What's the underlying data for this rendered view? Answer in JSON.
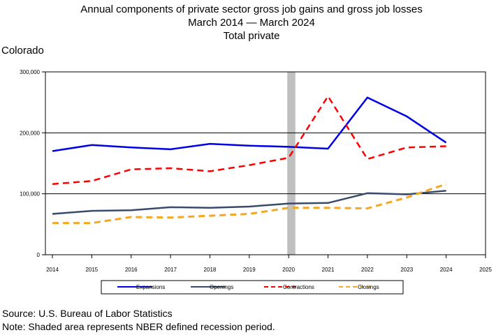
{
  "header": {
    "title_line1": "Annual components of private sector gross job gains and gross job losses",
    "title_line2": "March 2014 — March 2024",
    "title_line3": "Total private",
    "region": "Colorado"
  },
  "footer": {
    "source": "Source: U.S. Bureau of Labor Statistics",
    "note": "Note: Shaded area represents NBER defined recession period."
  },
  "chart_data": {
    "type": "line",
    "x": [
      2014,
      2015,
      2016,
      2017,
      2018,
      2019,
      2020,
      2021,
      2022,
      2023,
      2024
    ],
    "xlim": [
      2014,
      2025
    ],
    "x_ticks": [
      "2014",
      "2015",
      "2016",
      "2017",
      "2018",
      "2019",
      "2020",
      "2021",
      "2022",
      "2023",
      "2024",
      "2025"
    ],
    "ylim": [
      0,
      300000
    ],
    "y_ticks": [
      0,
      100000,
      200000,
      300000
    ],
    "y_tick_labels": [
      "0",
      "100,000",
      "200,000",
      "300,000"
    ],
    "gridlines_y": [
      100000,
      200000
    ],
    "recession": [
      2020.0,
      2020.17
    ],
    "series": [
      {
        "name": "Expansions",
        "color": "#0000e6",
        "dash": "solid",
        "width": 2.5,
        "values": [
          170000,
          180000,
          176000,
          173000,
          182000,
          179000,
          177000,
          174000,
          258000,
          227000,
          184000
        ]
      },
      {
        "name": "Openings",
        "color": "#3a4a6b",
        "dash": "solid",
        "width": 2.5,
        "values": [
          67000,
          72000,
          73000,
          78000,
          77000,
          79000,
          84000,
          85000,
          101000,
          99000,
          105000
        ]
      },
      {
        "name": "Contractions",
        "color": "#ff0000",
        "dash": "dashed",
        "width": 2.5,
        "values": [
          116000,
          121000,
          140000,
          142000,
          137000,
          147000,
          159000,
          260000,
          157000,
          176000,
          178000
        ]
      },
      {
        "name": "Closings",
        "color": "#f5a623",
        "dash": "dashed",
        "width": 3,
        "values": [
          52000,
          52000,
          62000,
          61000,
          64000,
          67000,
          77000,
          77000,
          76000,
          94000,
          116000
        ]
      }
    ],
    "legend_position": "bottom"
  }
}
